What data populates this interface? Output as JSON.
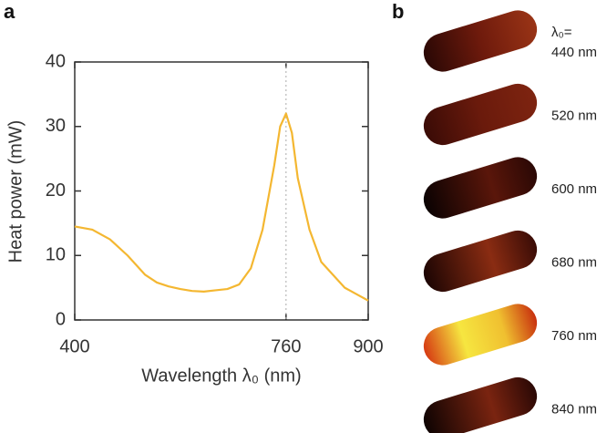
{
  "chart_data": {
    "type": "line",
    "panel_label": "a",
    "xlabel": "Wavelength λ₀  (nm)",
    "ylabel": "Heat power  (mW)",
    "x": [
      400,
      430,
      460,
      490,
      520,
      540,
      560,
      580,
      600,
      620,
      640,
      660,
      680,
      700,
      720,
      740,
      750,
      760,
      770,
      780,
      800,
      820,
      840,
      860,
      880,
      900
    ],
    "values": [
      14.5,
      14,
      12.5,
      10,
      7,
      5.8,
      5.2,
      4.8,
      4.5,
      4.4,
      4.6,
      4.8,
      5.5,
      8,
      14,
      24,
      30,
      32,
      29,
      22,
      14,
      9,
      7,
      5,
      4,
      3
    ],
    "color": "#f4b731",
    "xlim": [
      400,
      900
    ],
    "xticks": [
      400,
      760,
      900
    ],
    "ylim": [
      0,
      40
    ],
    "yticks": [
      0,
      10,
      20,
      30,
      40
    ],
    "marker_x": 760
  },
  "panel_b": {
    "panel_label": "b",
    "title": "λ₀=",
    "labels": [
      "440 nm",
      "520 nm",
      "600 nm",
      "680 nm",
      "760 nm",
      "840 nm"
    ]
  }
}
